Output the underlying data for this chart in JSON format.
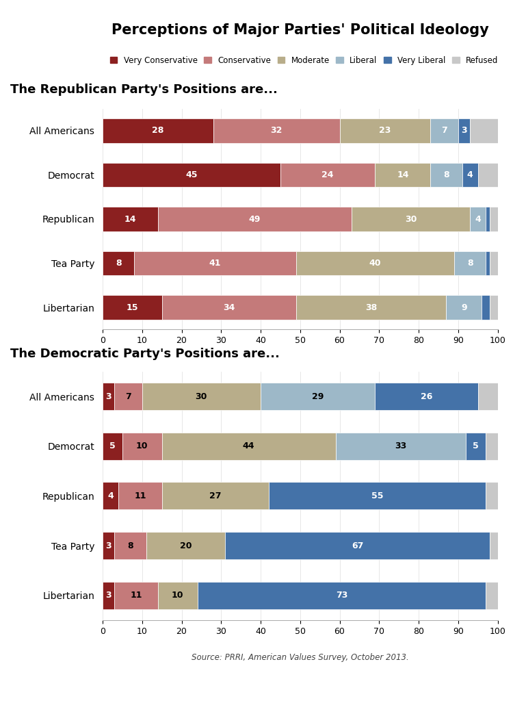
{
  "title": "Perceptions of Major Parties' Political Ideology",
  "colors": {
    "very_conservative": "#8B2020",
    "conservative": "#C47A7A",
    "moderate": "#B8AD8A",
    "liberal": "#9DB8C8",
    "very_liberal": "#4472A8",
    "refused": "#C8C8C8"
  },
  "legend_labels": [
    "Very Conservative",
    "Conservative",
    "Moderate",
    "Liberal",
    "Very Liberal",
    "Refused"
  ],
  "rep_subtitle": "The Republican Party's Positions are...",
  "dem_subtitle": "The Democratic Party's Positions are...",
  "rep_categories": [
    "All Americans",
    "Democrat",
    "Republican",
    "Tea Party",
    "Libertarian"
  ],
  "rep_data": [
    [
      28,
      32,
      23,
      7,
      3,
      7
    ],
    [
      45,
      24,
      14,
      8,
      4,
      5
    ],
    [
      14,
      49,
      30,
      4,
      1,
      2
    ],
    [
      8,
      41,
      40,
      8,
      1,
      2
    ],
    [
      15,
      34,
      38,
      9,
      2,
      2
    ]
  ],
  "rep_labels": [
    [
      "28",
      "32",
      "23",
      "7",
      "3",
      ""
    ],
    [
      "45",
      "24",
      "14",
      "8",
      "4",
      ""
    ],
    [
      "14",
      "49",
      "30",
      "4",
      "",
      ""
    ],
    [
      "8",
      "41",
      "40",
      "8",
      "",
      ""
    ],
    [
      "15",
      "34",
      "38",
      "9",
      "",
      ""
    ]
  ],
  "rep_label_colors": [
    [
      "white",
      "white",
      "white",
      "white",
      "white",
      "white"
    ],
    [
      "white",
      "white",
      "white",
      "white",
      "white",
      "white"
    ],
    [
      "white",
      "white",
      "white",
      "white",
      "white",
      "white"
    ],
    [
      "white",
      "white",
      "white",
      "white",
      "white",
      "white"
    ],
    [
      "white",
      "white",
      "white",
      "white",
      "white",
      "white"
    ]
  ],
  "dem_categories": [
    "All Americans",
    "Democrat",
    "Republican",
    "Tea Party",
    "Libertarian"
  ],
  "dem_data": [
    [
      3,
      7,
      30,
      29,
      26,
      5
    ],
    [
      5,
      10,
      44,
      33,
      5,
      3
    ],
    [
      4,
      11,
      27,
      0,
      55,
      3
    ],
    [
      3,
      8,
      20,
      0,
      67,
      2
    ],
    [
      3,
      11,
      10,
      0,
      73,
      3
    ]
  ],
  "dem_labels": [
    [
      "3",
      "7",
      "30",
      "29",
      "26",
      ""
    ],
    [
      "5",
      "10",
      "44",
      "33",
      "5",
      ""
    ],
    [
      "4",
      "11",
      "27",
      "",
      "55",
      ""
    ],
    [
      "3",
      "8",
      "20",
      "",
      "67",
      ""
    ],
    [
      "3",
      "11",
      "10",
      "",
      "73",
      ""
    ]
  ],
  "dem_label_colors": [
    [
      "white",
      "black",
      "black",
      "black",
      "white",
      "white"
    ],
    [
      "white",
      "black",
      "black",
      "black",
      "white",
      "white"
    ],
    [
      "white",
      "black",
      "black",
      "",
      "white",
      "white"
    ],
    [
      "white",
      "black",
      "black",
      "",
      "white",
      "white"
    ],
    [
      "white",
      "black",
      "black",
      "",
      "white",
      "white"
    ]
  ],
  "source": "Source: PRRI, American Values Survey, October 2013.",
  "xlim": [
    0,
    100
  ],
  "bar_height": 0.55,
  "label_fontsize": 9,
  "category_fontsize": 10,
  "subtitle_fontsize": 13
}
